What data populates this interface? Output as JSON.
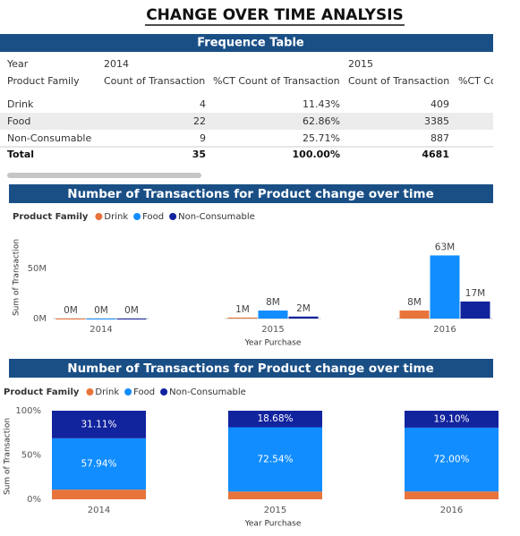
{
  "title": "CHANGE OVER TIME ANALYSIS",
  "table": {
    "title": "Frequence Table",
    "year_label": "Year",
    "years": [
      "2014",
      "2015"
    ],
    "columns": [
      "Product Family",
      "Count of Transaction",
      "%CT Count of Transaction",
      "Count of Transaction",
      "%CT Cou"
    ],
    "rows": [
      [
        "Drink",
        "4",
        "11.43%",
        "409"
      ],
      [
        "Food",
        "22",
        "62.86%",
        "3385"
      ],
      [
        "Non-Consumable",
        "9",
        "25.71%",
        "887"
      ],
      [
        "Total",
        "35",
        "100.00%",
        "4681"
      ]
    ]
  },
  "chart_data": [
    {
      "type": "bar",
      "stacked": false,
      "title": "Number of Transactions for Product change over time",
      "legend_title": "Product Family",
      "xlabel": "Year Purchase",
      "ylabel": "Sum of Transaction",
      "categories": [
        "2014",
        "2015",
        "2016"
      ],
      "series": [
        {
          "name": "Drink",
          "color": "#e8743b",
          "values": [
            0,
            1,
            8
          ],
          "value_labels": [
            "0M",
            "1M",
            "8M"
          ]
        },
        {
          "name": "Food",
          "color": "#118dff",
          "values": [
            0,
            8,
            63
          ],
          "value_labels": [
            "0M",
            "8M",
            "63M"
          ]
        },
        {
          "name": "Non-Consumable",
          "color": "#12239e",
          "values": [
            0,
            2,
            17
          ],
          "value_labels": [
            "0M",
            "2M",
            "17M"
          ]
        }
      ],
      "ylim": [
        0,
        70
      ],
      "yticks": [
        {
          "value": 0,
          "label": "0M"
        },
        {
          "value": 50,
          "label": "50M"
        }
      ]
    },
    {
      "type": "bar",
      "stacked": true,
      "title": "Number of Transactions for Product change over time",
      "legend_title": "Product Family",
      "xlabel": "Year Purchase",
      "ylabel": "Sum of Transaction",
      "categories": [
        "2014",
        "2015",
        "2016"
      ],
      "series": [
        {
          "name": "Drink",
          "color": "#e8743b",
          "values": [
            10.95,
            8.78,
            8.9
          ]
        },
        {
          "name": "Food",
          "color": "#118dff",
          "values": [
            57.94,
            72.54,
            72.0
          ],
          "value_labels": [
            "57.94%",
            "72.54%",
            "72.00%"
          ]
        },
        {
          "name": "Non-Consumable",
          "color": "#12239e",
          "values": [
            31.11,
            18.68,
            19.1
          ],
          "value_labels": [
            "31.11%",
            "18.68%",
            "19.10%"
          ]
        }
      ],
      "ylim": [
        0,
        100
      ],
      "yticks": [
        {
          "value": 0,
          "label": "0%"
        },
        {
          "value": 50,
          "label": "50%"
        },
        {
          "value": 100,
          "label": "100%"
        }
      ]
    }
  ]
}
